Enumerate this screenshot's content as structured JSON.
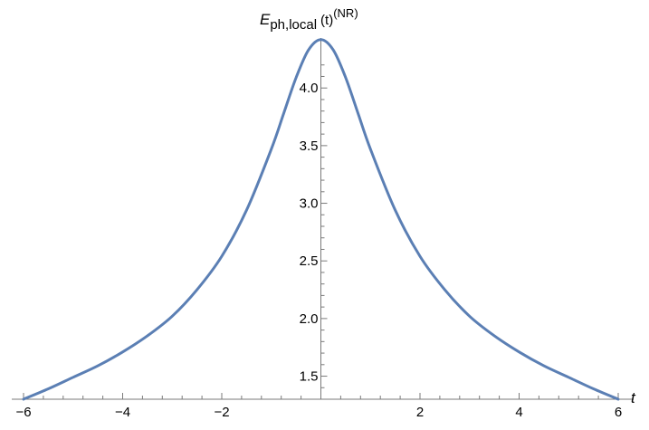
{
  "chart_data": {
    "type": "line",
    "ylabel": {
      "symbol": "E",
      "subscript": "ph,local",
      "argument": "(t)",
      "superscript": "(NR)"
    },
    "xlabel": "t",
    "xlim": [
      -6,
      6
    ],
    "ylim": [
      1.3,
      4.3
    ],
    "x_axis_crosses_y_at": 1.3,
    "y_axis_at_x": 0,
    "x_ticks": [
      -6,
      -4,
      -2,
      2,
      4,
      6
    ],
    "x_tick_labels": [
      "−6",
      "−4",
      "−2",
      "2",
      "4",
      "6"
    ],
    "y_ticks": [
      1.5,
      2.0,
      2.5,
      3.0,
      3.5,
      4.0
    ],
    "y_tick_labels": [
      "1.5",
      "2.0",
      "2.5",
      "3.0",
      "3.5",
      "4.0"
    ],
    "grid": false,
    "line_color": "#5b7fb4",
    "series": [
      {
        "x": [
          -6,
          -5.5,
          -5,
          -4.5,
          -4,
          -3.5,
          -3,
          -2.5,
          -2,
          -1.5,
          -1,
          -0.75,
          -0.5,
          -0.25,
          0,
          0.25,
          0.5,
          0.75,
          1,
          1.5,
          2,
          2.5,
          3,
          3.5,
          4,
          4.5,
          5,
          5.5,
          6
        ],
        "y": [
          1.3,
          1.39,
          1.49,
          1.59,
          1.71,
          1.85,
          2.02,
          2.25,
          2.54,
          2.94,
          3.47,
          3.78,
          4.09,
          4.33,
          4.42,
          4.33,
          4.09,
          3.78,
          3.47,
          2.94,
          2.54,
          2.25,
          2.02,
          1.85,
          1.71,
          1.59,
          1.49,
          1.39,
          1.3
        ]
      }
    ]
  }
}
